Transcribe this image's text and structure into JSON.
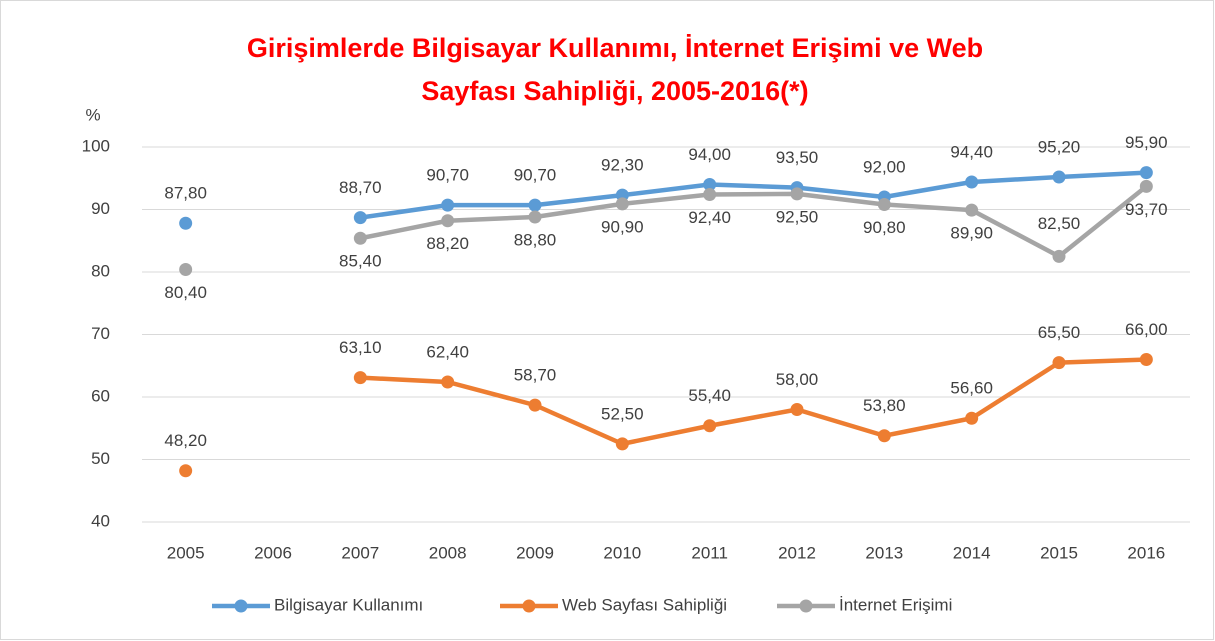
{
  "chart_data": {
    "type": "line",
    "title": [
      "Girişimlerde Bilgisayar Kullanımı, İnternet Erişimi ve Web",
      "Sayfası Sahipliği, 2005-2016(*)"
    ],
    "y_label": "%",
    "categories": [
      "2005",
      "2006",
      "2007",
      "2008",
      "2009",
      "2010",
      "2011",
      "2012",
      "2013",
      "2014",
      "2015",
      "2016"
    ],
    "series": [
      {
        "name": "Bilgisayar Kullanımı",
        "color": "#5b9bd5",
        "values": [
          87.8,
          null,
          88.7,
          90.7,
          90.7,
          92.3,
          94.0,
          93.5,
          92.0,
          94.4,
          95.2,
          95.9
        ],
        "value_labels": [
          "87,80",
          null,
          "88,70",
          "90,70",
          "90,70",
          "92,30",
          "94,00",
          "93,50",
          "92,00",
          "94,40",
          "95,20",
          "95,90"
        ]
      },
      {
        "name": "Web Sayfası Sahipliği",
        "color": "#ed7d31",
        "values": [
          48.2,
          null,
          63.1,
          62.4,
          58.7,
          52.5,
          55.4,
          58.0,
          53.8,
          56.6,
          65.5,
          66.0
        ],
        "value_labels": [
          "48,20",
          null,
          "63,10",
          "62,40",
          "58,70",
          "52,50",
          "55,40",
          "58,00",
          "53,80",
          "56,60",
          "65,50",
          "66,00"
        ]
      },
      {
        "name": "İnternet Erişimi",
        "color": "#a5a5a5",
        "values": [
          80.4,
          null,
          85.4,
          88.2,
          88.8,
          90.9,
          92.4,
          92.5,
          90.8,
          89.9,
          82.5,
          93.7
        ],
        "value_labels": [
          "80,40",
          null,
          "85,40",
          "88,20",
          "88,80",
          "90,90",
          "92,40",
          "92,50",
          "90,80",
          "89,90",
          "82,50",
          "93,70"
        ]
      }
    ],
    "ylim": [
      40,
      100
    ],
    "yticks": [
      40,
      50,
      60,
      70,
      80,
      90,
      100
    ],
    "grid": true,
    "legend": "bottom"
  }
}
